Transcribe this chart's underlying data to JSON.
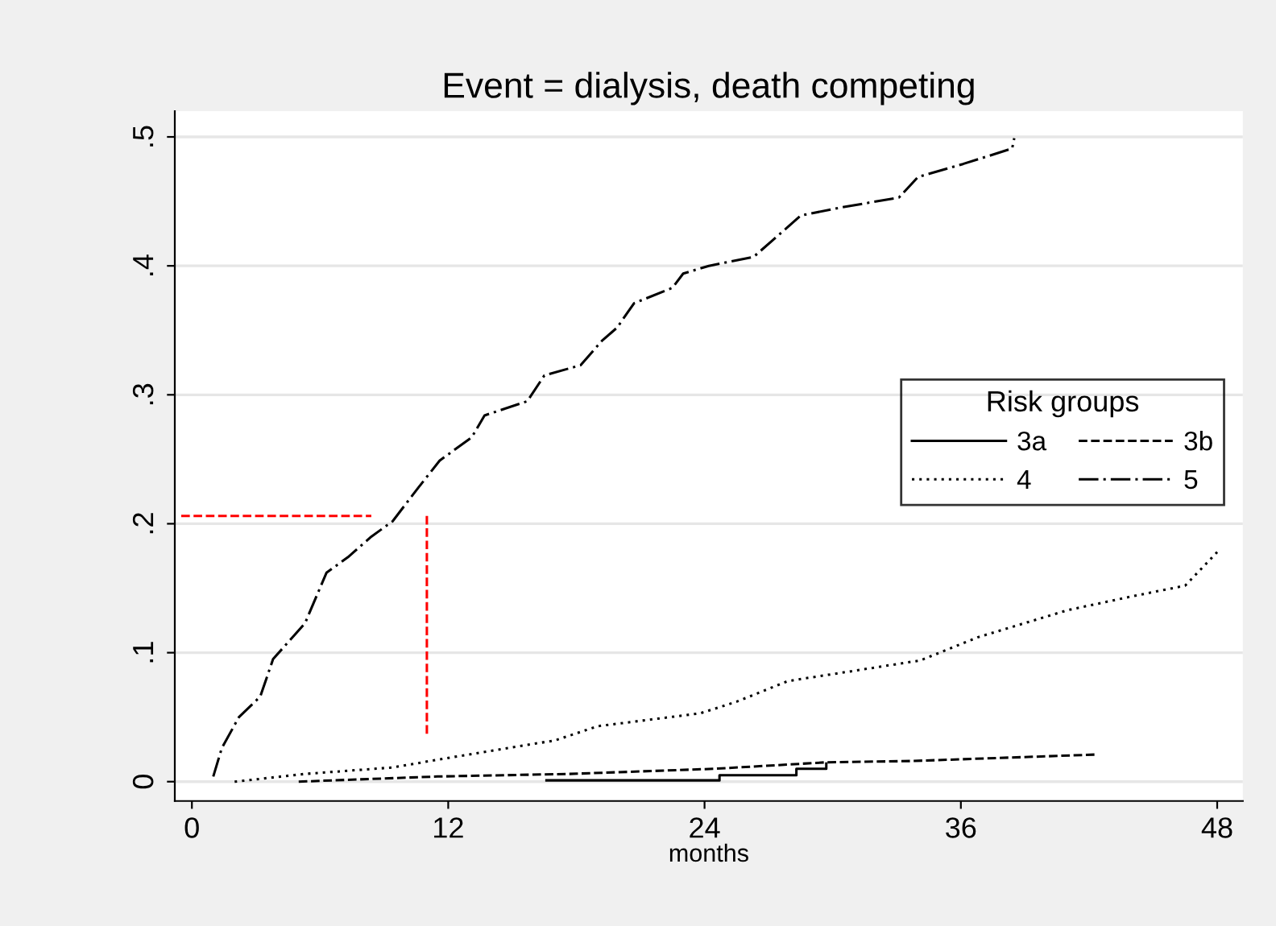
{
  "chart_data": {
    "type": "line",
    "title": "Event = dialysis, death competing",
    "xlabel": "months",
    "legend_title": "Risk groups",
    "legend": "right",
    "grid": "y",
    "xlim": [
      -0.8,
      49.2
    ],
    "ylim": [
      -0.015,
      0.52
    ],
    "xticks": [
      0,
      12,
      24,
      36,
      48
    ],
    "yticks": [
      {
        "value": 0,
        "label": "0"
      },
      {
        "value": 0.1,
        "label": ".1"
      },
      {
        "value": 0.2,
        "label": ".2"
      },
      {
        "value": 0.3,
        "label": ".3"
      },
      {
        "value": 0.4,
        "label": ".4"
      },
      {
        "value": 0.5,
        "label": ".5"
      }
    ],
    "series": [
      {
        "name": "3a",
        "color": "#000000",
        "line_style": "solid",
        "x": [
          16.6,
          24.7,
          24.7,
          28.3,
          28.3,
          29.7,
          29.7
        ],
        "values": [
          0.001,
          0.001,
          0.005,
          0.005,
          0.01,
          0.01,
          0.014
        ]
      },
      {
        "name": "3b",
        "color": "#000000",
        "line_style": "dashed",
        "x": [
          5,
          11.5,
          17.7,
          24.5,
          29.7,
          33.7,
          42.3
        ],
        "values": [
          0,
          0.004,
          0.006,
          0.01,
          0.015,
          0.016,
          0.021
        ]
      },
      {
        "name": "4",
        "color": "#000000",
        "line_style": "dotted",
        "x": [
          2.0,
          5.3,
          9.4,
          12.2,
          17,
          19,
          23.8,
          25.5,
          27.9,
          31.4,
          34.1,
          36.8,
          41,
          44.1,
          46.5,
          48
        ],
        "values": [
          0,
          0.006,
          0.011,
          0.019,
          0.032,
          0.043,
          0.053,
          0.062,
          0.078,
          0.087,
          0.094,
          0.112,
          0.133,
          0.144,
          0.152,
          0.178
        ]
      },
      {
        "name": "5",
        "color": "#000000",
        "line_style": "dashdot",
        "x": [
          1.0,
          1.4,
          2.2,
          3.2,
          3.8,
          5.3,
          6.3,
          7.3,
          8.4,
          9.4,
          10.6,
          11.6,
          13.1,
          13.7,
          15.7,
          16.5,
          18.2,
          19.2,
          19.9,
          20.7,
          22.5,
          23,
          24.2,
          26.3,
          27.2,
          28.5,
          30.3,
          33.1,
          34,
          36.1,
          38.4,
          38.5
        ],
        "values": [
          0.004,
          0.026,
          0.05,
          0.066,
          0.095,
          0.123,
          0.162,
          0.174,
          0.19,
          0.202,
          0.228,
          0.249,
          0.267,
          0.284,
          0.295,
          0.315,
          0.323,
          0.342,
          0.352,
          0.371,
          0.383,
          0.394,
          0.4,
          0.407,
          0.42,
          0.439,
          0.445,
          0.453,
          0.469,
          0.479,
          0.491,
          0.499
        ]
      },
      {
        "color": "#ff0000",
        "line_style": "dashed",
        "x": [
          -0.5,
          8.4
        ],
        "values": [
          0.206,
          0.206
        ]
      },
      {
        "color": "#ff0000",
        "line_style": "dashed",
        "x": [
          11,
          11
        ],
        "values": [
          0.206,
          0.035
        ]
      }
    ]
  }
}
